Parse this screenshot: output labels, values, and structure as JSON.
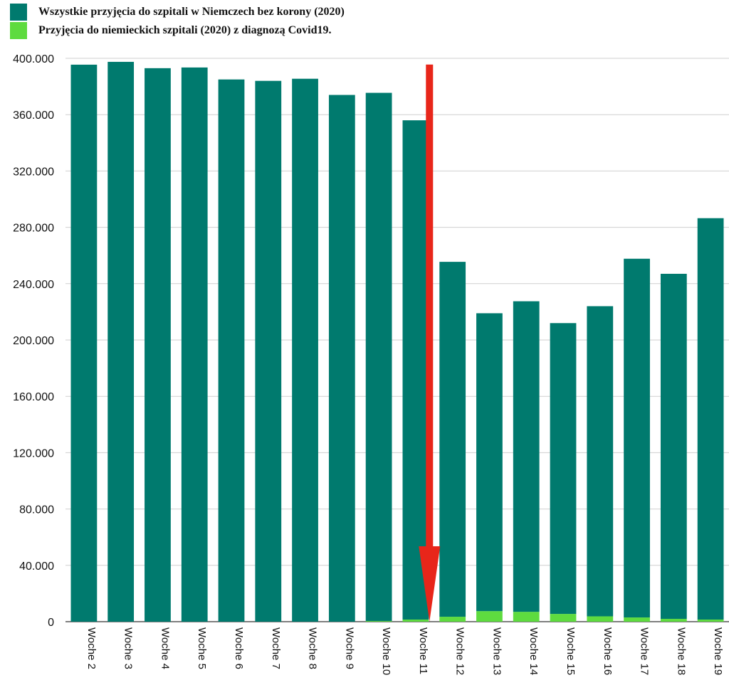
{
  "legend": [
    {
      "label": "Wszystkie przyjęcia do szpitali w Niemczech bez korony (2020)",
      "color": "#007A6E"
    },
    {
      "label": "Przyjęcia do niemieckich szpitali (2020) z diagnozą Covid19.",
      "color": "#5EDB3F"
    }
  ],
  "chart_data": {
    "type": "bar",
    "stacked": true,
    "categories": [
      "Woche 2",
      "Woche 3",
      "Woche 4",
      "Woche 5",
      "Woche 6",
      "Woche 7",
      "Woche 8",
      "Woche 9",
      "Woche 10",
      "Woche 11",
      "Woche 12",
      "Woche 13",
      "Woche 14",
      "Woche 15",
      "Woche 16",
      "Woche 17",
      "Woche 18",
      "Woche 19"
    ],
    "series": [
      {
        "name": "Przyjęcia do niemieckich szpitali (2020) z diagnozą Covid19.",
        "color": "#5EDB3F",
        "values": [
          0,
          0,
          0,
          0,
          0,
          0,
          0,
          0,
          500,
          1500,
          3500,
          7500,
          7000,
          5500,
          3800,
          3000,
          2000,
          1500
        ]
      },
      {
        "name": "Wszystkie przyjęcia do szpitali w Niemczech bez korony (2020)",
        "color": "#007A6E",
        "values": [
          395500,
          397500,
          393000,
          393500,
          385000,
          384000,
          385500,
          374000,
          375000,
          354500,
          252000,
          211500,
          220500,
          206500,
          220200,
          254700,
          245000,
          285000
        ]
      }
    ],
    "yticks": [
      "0",
      "40.000",
      "80.000",
      "120.000",
      "160.000",
      "200.000",
      "240.000",
      "280.000",
      "320.000",
      "360.000",
      "400.000"
    ],
    "ylim": [
      0,
      400000
    ],
    "grid": true,
    "legend_position": "top-left",
    "annotation": {
      "type": "arrow",
      "color": "#E8261A",
      "category": "Woche 11",
      "from_value": 387000,
      "to_value": 0
    }
  }
}
